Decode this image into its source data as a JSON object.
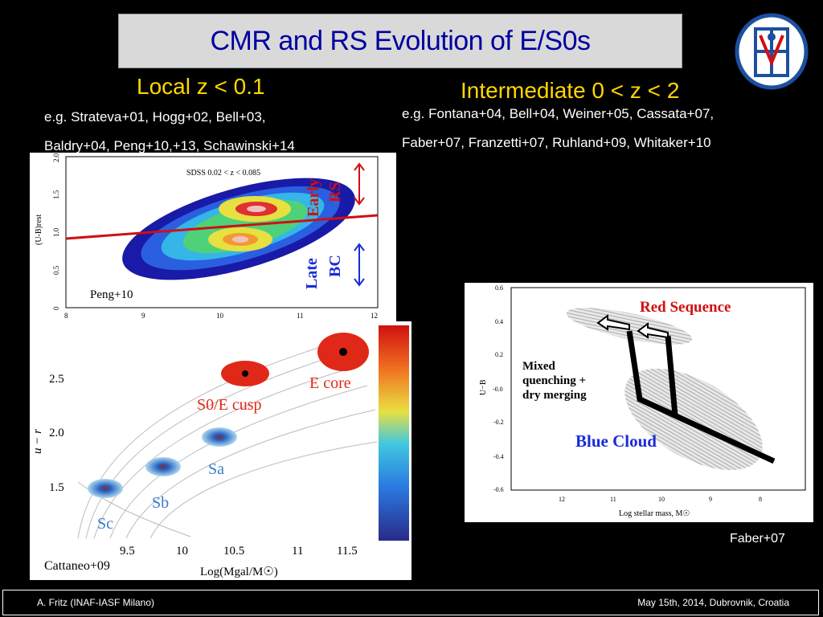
{
  "title": "CMR and RS Evolution of E/S0s",
  "left": {
    "heading": "Local z < 0.1",
    "refs_line1": "e.g. Strateva+01, Hogg+02, Bell+03,",
    "refs_line2": "Baldry+04, Peng+10,+13, Schawinski+14"
  },
  "right": {
    "heading": "Intermediate 0 < z < 2",
    "refs_line1": "e.g. Fontana+04, Bell+04, Weiner+05, Cassata+07,",
    "refs_line2": "Faber+07, Franzetti+07, Ruhland+09, Whitaker+10"
  },
  "peng_plot": {
    "label": "SDSS 0.02 < z < 0.085",
    "ylabel": "(U-B)rest",
    "early_rs": [
      "Early",
      "RS"
    ],
    "late_bc": [
      "Late",
      "BC"
    ],
    "yticks": [
      "2.0",
      "1.5",
      "1.0",
      "0.5",
      "0"
    ],
    "xticks": [
      "8",
      "9",
      "10",
      "11",
      "12"
    ],
    "caption": "Peng+10"
  },
  "cattaneo_plot": {
    "ylabel": "u − r",
    "xlabel": "Log(Mgal/M☉)",
    "yticks": [
      "2.5",
      "2.0",
      "1.5"
    ],
    "xticks": [
      "9.5",
      "10",
      "10.5",
      "11",
      "11.5"
    ],
    "labels": {
      "ecore": "E core",
      "s0e": "S0/E cusp",
      "sa": "Sa",
      "sb": "Sb",
      "sc": "Sc"
    },
    "caption": "Cattaneo+09"
  },
  "faber_plot": {
    "red_sequence": "Red Sequence",
    "blue_cloud": "Blue Cloud",
    "mixed": [
      "Mixed",
      "quenching +",
      "dry merging"
    ],
    "ylabel": "U−B",
    "xlabel": "Log stellar mass, M☉",
    "yticks": [
      "0.6",
      "0.4",
      "0.2",
      "-0.0",
      "-0.2",
      "-0.4",
      "-0.6"
    ],
    "xticks": [
      "12",
      "11",
      "10",
      "9",
      "8"
    ],
    "caption": "Faber+07"
  },
  "footer": {
    "left": "A. Fritz (INAF-IASF Milano)",
    "right": "May 15th, 2014, Dubrovnik, Croatia"
  },
  "colors": {
    "title_text": "#0000a0",
    "heading": "#ffd700",
    "red_line": "#d01010",
    "arrow_blue": "#1a2bd8"
  }
}
